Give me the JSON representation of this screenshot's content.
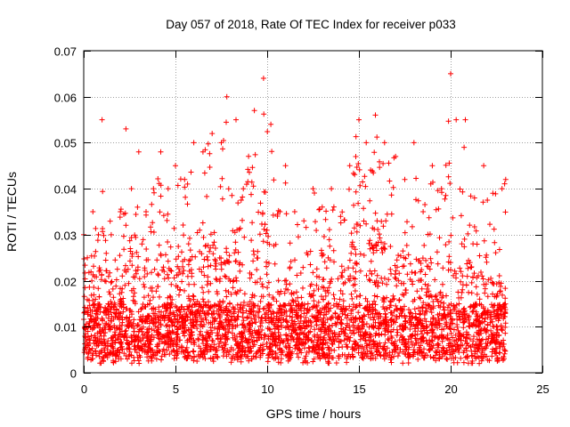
{
  "chart_data": {
    "type": "scatter",
    "title": "Day 057 of 2018, Rate Of TEC Index for receiver p033",
    "xlabel": "GPS time / hours",
    "ylabel": "ROTI / TECUs",
    "xlim": [
      0,
      25
    ],
    "ylim": [
      0,
      0.07
    ],
    "xticks": [
      0,
      5,
      10,
      15,
      20,
      25
    ],
    "xtick_labels": [
      "0",
      "5",
      "10",
      "15",
      "20",
      "25"
    ],
    "yticks": [
      0,
      0.01,
      0.02,
      0.03,
      0.04,
      0.05,
      0.06,
      0.07
    ],
    "ytick_labels": [
      "0",
      "0.01",
      "0.02",
      "0.03",
      "0.04",
      "0.05",
      "0.06",
      "0.07"
    ],
    "grid": true,
    "marker": "+",
    "marker_color": "#ff0000",
    "data_extent_hours": [
      0,
      23
    ],
    "envelope": {
      "x": [
        0.0,
        0.2,
        0.5,
        0.8,
        1.0,
        1.5,
        2.0,
        2.3,
        2.6,
        3.0,
        3.4,
        3.8,
        4.2,
        4.6,
        5.0,
        5.5,
        6.0,
        6.5,
        7.0,
        7.5,
        7.8,
        8.3,
        8.7,
        9.3,
        9.8,
        10.2,
        10.7,
        11.0,
        11.5,
        12.0,
        12.5,
        13.0,
        13.5,
        14.0,
        14.5,
        15.0,
        15.4,
        15.9,
        16.4,
        17.0,
        17.5,
        18.0,
        18.5,
        19.0,
        19.5,
        20.0,
        20.3,
        20.8,
        21.3,
        21.8,
        22.3,
        22.8,
        23.0
      ],
      "upper": [
        0.03,
        0.025,
        0.035,
        0.03,
        0.055,
        0.03,
        0.035,
        0.053,
        0.04,
        0.048,
        0.035,
        0.04,
        0.048,
        0.04,
        0.045,
        0.042,
        0.05,
        0.048,
        0.052,
        0.05,
        0.06,
        0.055,
        0.04,
        0.057,
        0.064,
        0.054,
        0.035,
        0.045,
        0.035,
        0.033,
        0.04,
        0.036,
        0.04,
        0.034,
        0.045,
        0.055,
        0.05,
        0.056,
        0.05,
        0.047,
        0.042,
        0.05,
        0.035,
        0.045,
        0.04,
        0.065,
        0.055,
        0.055,
        0.038,
        0.045,
        0.039,
        0.04,
        0.042
      ],
      "core_upper": [
        0.02,
        0.015,
        0.022,
        0.018,
        0.03,
        0.018,
        0.02,
        0.03,
        0.025,
        0.027,
        0.02,
        0.022,
        0.026,
        0.022,
        0.024,
        0.025,
        0.028,
        0.027,
        0.03,
        0.028,
        0.03,
        0.028,
        0.022,
        0.028,
        0.033,
        0.028,
        0.018,
        0.022,
        0.02,
        0.018,
        0.022,
        0.02,
        0.022,
        0.02,
        0.025,
        0.03,
        0.027,
        0.03,
        0.027,
        0.025,
        0.022,
        0.026,
        0.02,
        0.024,
        0.022,
        0.03,
        0.028,
        0.028,
        0.02,
        0.022,
        0.02,
        0.02,
        0.018
      ],
      "lower_min": 0.002,
      "core_range": [
        0.003,
        0.015
      ]
    }
  }
}
